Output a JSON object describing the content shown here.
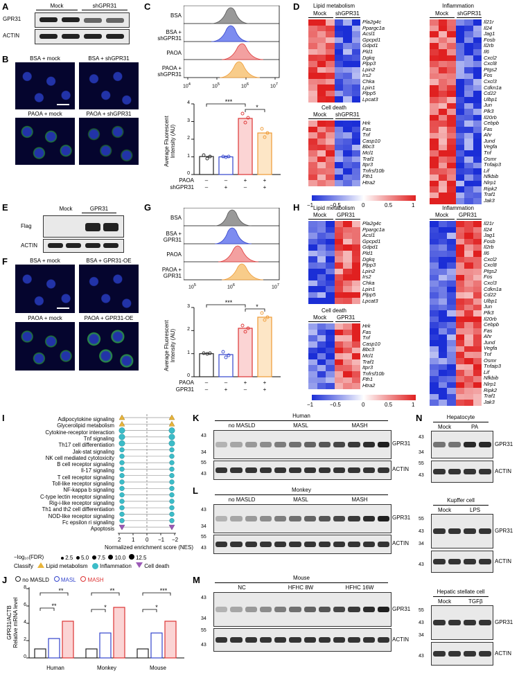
{
  "panels": {
    "A": {
      "label": "A",
      "groups": [
        "Mock",
        "shGPR31"
      ],
      "rows": [
        "GPR31",
        "ACTIN"
      ]
    },
    "B": {
      "label": "B",
      "titles": [
        "BSA + mock",
        "BSA + shGPR31",
        "PAOA + mock",
        "PAOA + shGPR31"
      ]
    },
    "C": {
      "label": "C",
      "hist_labels": [
        "BSA",
        "BSA +\nshGPR31",
        "PAOA",
        "PAOA +\nshGPR31"
      ],
      "hist_colors": [
        "#888888",
        "#4a5fd6",
        "#e04848",
        "#f0a040"
      ],
      "hist_ticks": [
        "10",
        "10",
        "10",
        "10"
      ],
      "hist_tick_exps": [
        "4",
        "5",
        "6",
        "7"
      ],
      "bar_ylabel": "Average Fluorescent\nIntensity (AU)",
      "bar_yticks": [
        "0",
        "1",
        "2",
        "3",
        "4"
      ],
      "sig": [
        "***",
        "*"
      ],
      "rows": [
        {
          "name": "PAOA",
          "vals": [
            "–",
            "–",
            "+",
            "+"
          ]
        },
        {
          "name": "shGPR31",
          "vals": [
            "–",
            "+",
            "–",
            "+"
          ]
        }
      ]
    },
    "D": {
      "label": "D",
      "blocks": [
        {
          "title": "Lipid metabolism",
          "groups": [
            "Mock",
            "shGPR31"
          ],
          "genes": [
            "Pla2g4c",
            "Ppargc1a",
            "Acsl1",
            "Gpcpd1",
            "Gdpd1",
            "Pld1",
            "Dgkq",
            "Plpp3",
            "Lpin2",
            "Irs2",
            "Chka",
            "Lpin1",
            "Plpp5",
            "Lpcat3"
          ]
        },
        {
          "title": "Cell death",
          "groups": [
            "Mock",
            "shGPR31"
          ],
          "genes": [
            "Hrk",
            "Fas",
            "Tnf",
            "Casp10",
            "Bbc3",
            "Mcl1",
            "Traf1",
            "Itpr3",
            "Tnfrsf10b",
            "Fth1",
            "Htra2"
          ]
        },
        {
          "title": "Inflammation",
          "groups": [
            "Mock",
            "shGPR31"
          ],
          "genes": [
            "Il21r",
            "Il24",
            "Jag1",
            "Fosb",
            "Il2rb",
            "Il6",
            "Cxcl2",
            "Cxcl8",
            "Ptgs2",
            "Fos",
            "Cxcl3",
            "Cdkn1a",
            "Cd22",
            "Ulbp1",
            "Jun",
            "Plk3",
            "Il20rb",
            "Cebpb",
            "Fas",
            "Ahr",
            "Jund",
            "Vegfa",
            "Tnf",
            "Osmr",
            "Tnfaip3",
            "Lif",
            "Nfkbib",
            "Nlrp1",
            "Ripk2",
            "Traf1",
            "Jak3"
          ]
        }
      ],
      "colorbar": [
        "−1",
        "−0.5",
        "0",
        "0.5",
        "1"
      ]
    },
    "E": {
      "label": "E",
      "groups": [
        "Mock",
        "GPR31"
      ],
      "rows": [
        "Flag",
        "ACTIN"
      ]
    },
    "F": {
      "label": "F",
      "titles": [
        "BSA + mock",
        "BSA + GPR31-OE",
        "PAOA + mock",
        "PAOA + GPR31-OE"
      ]
    },
    "G": {
      "label": "G",
      "hist_labels": [
        "BSA",
        "BSA +\nGPR31",
        "PAOA",
        "PAOA +\nGPR31"
      ],
      "hist_ticks": [
        "10",
        "10",
        "10"
      ],
      "hist_tick_exps": [
        "5",
        "6",
        "7"
      ],
      "bar_ylabel": "Average Fluorescent\nIntensity (AU)",
      "bar_yticks": [
        "0",
        "1",
        "2",
        "3"
      ],
      "sig": [
        "***",
        "*"
      ],
      "rows": [
        {
          "name": "PAOA",
          "vals": [
            "–",
            "–",
            "+",
            "+"
          ]
        },
        {
          "name": "GPR31",
          "vals": [
            "–",
            "+",
            "–",
            "+"
          ]
        }
      ]
    },
    "H": {
      "label": "H",
      "groups": [
        "Mock",
        "GPR31"
      ],
      "titles": [
        "Lipid metabolism",
        "Cell death",
        "Inflammation"
      ],
      "colorbar": [
        "−1",
        "−0.5",
        "0",
        "0.5",
        "1"
      ]
    },
    "I": {
      "label": "I",
      "pathways": [
        "Adipocytokine signaling",
        "Glycerolipid metabolism",
        "Cytokine-receptor interaction",
        "Tnf signaling",
        "Th17 cell differentiation",
        "Jak-stat signaling",
        "NK cell mediated cytotoxicity",
        "B cell receptor signaling",
        "Il-17 signaling",
        "T cell receptor signaling",
        "Toll-like receptor signaling",
        "NF-kappa b signaling",
        "C-type lectin receptor signaling",
        "Rig-i-like receptor signaling",
        "Th1 and th2 cell differentiation",
        "NOD-like receptor signaling",
        "Fc epsilon ri signaling",
        "Apoptosis"
      ],
      "xlabel": "Normalized enrichment score (NES)",
      "xticks": [
        "2",
        "1",
        "0",
        "−1",
        "−2"
      ],
      "size_title": "−log₁₀(FDR)",
      "sizes": [
        "2.5",
        "5.0",
        "7.5",
        "10.0",
        "12.5"
      ],
      "classify_title": "Classify",
      "classes": [
        "Lipid metabolism",
        "Inflammation",
        "Cell death"
      ]
    },
    "J": {
      "label": "J",
      "legend": [
        "no MASLD",
        "MASL",
        "MASH"
      ],
      "ylabel": "GPR31/ACTB\nRelative mRNA level",
      "yticks": [
        "0",
        "2",
        "4",
        "6",
        "8"
      ],
      "groups": [
        "Human",
        "Monkey",
        "Mouse"
      ],
      "sig": [
        "**",
        "**",
        "*",
        "**",
        "*",
        "***"
      ]
    },
    "K": {
      "label": "K",
      "title": "Human",
      "groups": [
        "no MASLD",
        "MASL",
        "MASH"
      ],
      "markers": [
        "43",
        "34",
        "55",
        "43"
      ],
      "rows": [
        "GPR31",
        "ACTIN"
      ]
    },
    "L": {
      "label": "L",
      "title": "Monkey",
      "groups": [
        "no MASLD",
        "MASL",
        "MASH"
      ],
      "markers": [
        "43",
        "34",
        "55",
        "43"
      ],
      "rows": [
        "GPR31",
        "ACTIN"
      ]
    },
    "M": {
      "label": "M",
      "title": "Mouse",
      "groups": [
        "NC",
        "HFHC 8W",
        "HFHC 16W"
      ],
      "markers": [
        "43",
        "34",
        "55",
        "43"
      ],
      "rows": [
        "GPR31",
        "ACTIN"
      ]
    },
    "N": {
      "label": "N",
      "cells": [
        {
          "title": "Hepatocyte",
          "groups": [
            "Mock",
            "PA"
          ],
          "markers": [
            "43",
            "34",
            "55",
            "43"
          ],
          "rows": [
            "GPR31",
            "ACTIN"
          ]
        },
        {
          "title": "Kupffer cell",
          "groups": [
            "Mock",
            "LPS"
          ],
          "markers": [
            "55",
            "43",
            "34",
            "43"
          ],
          "rows": [
            "GPR31",
            "ACTIN"
          ]
        },
        {
          "title": "Hepatic stellate cell",
          "groups": [
            "Mock",
            "TGFβ"
          ],
          "markers": [
            "55",
            "43",
            "34",
            "43"
          ],
          "rows": [
            "GPR31",
            "ACTIN"
          ]
        }
      ]
    }
  }
}
